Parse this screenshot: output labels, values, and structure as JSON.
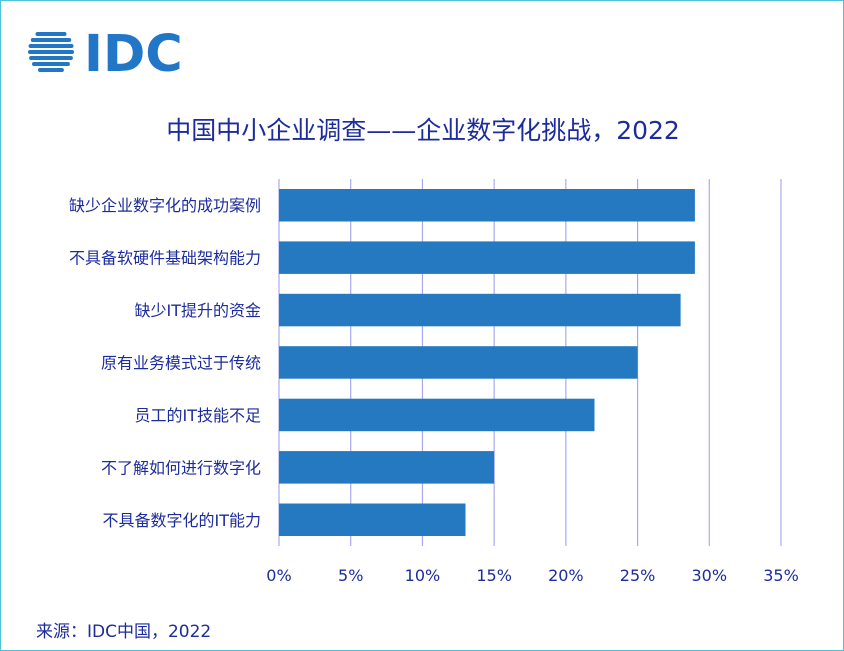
{
  "logo": {
    "text": "IDC",
    "color": "#2176c7"
  },
  "title": "中国中小企业调查——企业数字化挑战，2022",
  "source": "来源：IDC中国，2022",
  "colors": {
    "bar": "#2479c0",
    "text": "#1d2c9c",
    "grid": "#a9a9f0",
    "border": "#4fc3d8"
  },
  "chart_data": {
    "type": "bar",
    "orientation": "horizontal",
    "categories": [
      "缺少企业数字化的成功案例",
      "不具备软硬件基础架构能力",
      "缺少IT提升的资金",
      "原有业务模式过于传统",
      "员工的IT技能不足",
      "不了解如何进行数字化",
      "不具备数字化的IT能力"
    ],
    "values": [
      29,
      29,
      28,
      25,
      22,
      15,
      13
    ],
    "unit": "%",
    "xlim": [
      0,
      35
    ],
    "ticks": [
      0,
      5,
      10,
      15,
      20,
      25,
      30,
      35
    ],
    "tick_labels": [
      "0%",
      "5%",
      "10%",
      "15%",
      "20%",
      "25%",
      "30%",
      "35%"
    ],
    "grid": true
  }
}
